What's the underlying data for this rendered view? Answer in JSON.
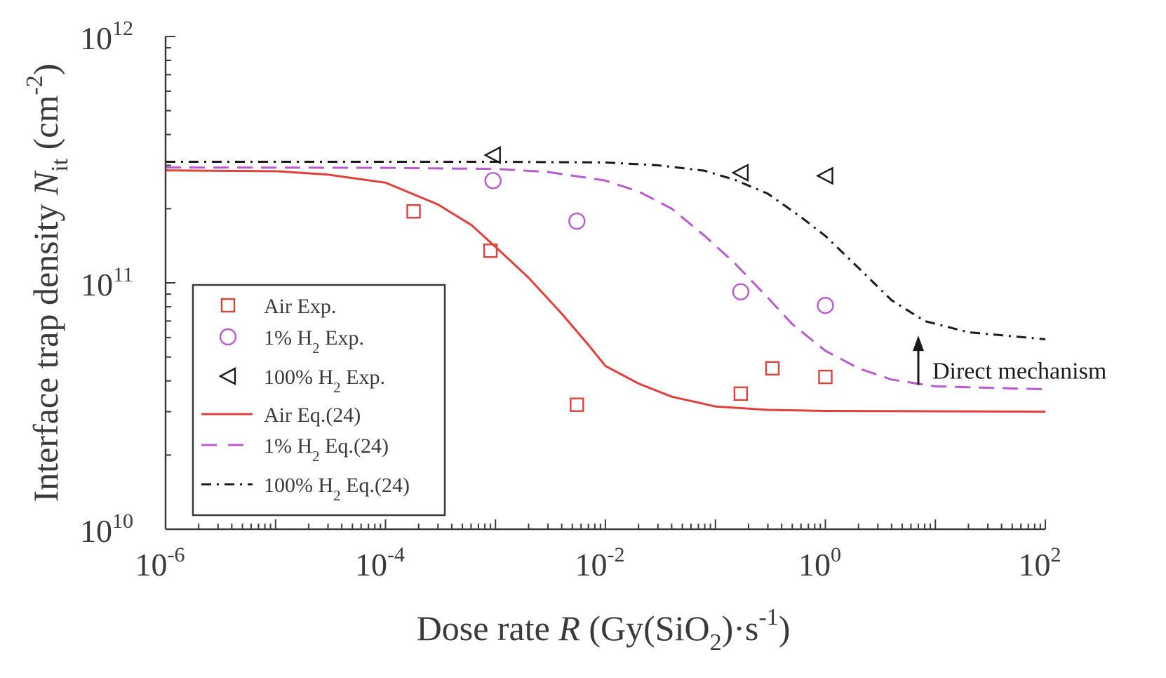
{
  "chart_data": {
    "type": "line",
    "x_scale": "log",
    "y_scale": "log",
    "xlim": [
      1e-06,
      100
    ],
    "ylim": [
      10000000000.0,
      1000000000000.0
    ],
    "x_ticks": [
      {
        "value": 1e-06,
        "base": "10",
        "exp": "-6"
      },
      {
        "value": 0.0001,
        "base": "10",
        "exp": "-4"
      },
      {
        "value": 0.01,
        "base": "10",
        "exp": "-2"
      },
      {
        "value": 1,
        "base": "10",
        "exp": "0"
      },
      {
        "value": 100,
        "base": "10",
        "exp": "2"
      }
    ],
    "y_ticks": [
      {
        "value": 10000000000.0,
        "base": "10",
        "exp": "10"
      },
      {
        "value": 100000000000.0,
        "base": "10",
        "exp": "11"
      },
      {
        "value": 1000000000000.0,
        "base": "10",
        "exp": "12"
      }
    ],
    "xlabel": {
      "pre": "Dose rate ",
      "var": "R",
      "mid": "  (Gy(SiO",
      "sub": "2",
      "post": ")·s",
      "sup": "-1",
      "end": ")"
    },
    "ylabel": {
      "pre": "Interface trap density ",
      "var": "N",
      "sub": "it",
      "mid": "  (cm",
      "sup": "-2",
      "end": ")"
    },
    "grid": false,
    "legend_position": "lower-left",
    "scatter_series": [
      {
        "name": "Air Exp.",
        "legend_pre": "Air Exp.",
        "marker": "square",
        "color": "#e0403a",
        "points": [
          [
            0.00018,
            195000000000.0
          ],
          [
            0.0009,
            135000000000.0
          ],
          [
            0.0055,
            32000000000.0
          ],
          [
            0.17,
            35500000000.0
          ],
          [
            0.33,
            45000000000.0
          ],
          [
            1.0,
            41500000000.0
          ]
        ]
      },
      {
        "name": "1% H2 Exp.",
        "legend_pre": "1% H",
        "legend_sub": "2",
        "legend_post": " Exp.",
        "marker": "circle",
        "color": "#b85bcc",
        "points": [
          [
            0.00095,
            260000000000.0
          ],
          [
            0.0055,
            178000000000.0
          ],
          [
            0.17,
            92000000000.0
          ],
          [
            1.0,
            81000000000.0
          ]
        ]
      },
      {
        "name": "100% H2 Exp.",
        "legend_pre": "100% H",
        "legend_sub": "2",
        "legend_post": " Exp.",
        "marker": "triangle-left",
        "color": "#1a1a1a",
        "points": [
          [
            0.00095,
            330000000000.0
          ],
          [
            0.17,
            280000000000.0
          ],
          [
            1.0,
            272000000000.0
          ]
        ]
      }
    ],
    "line_series": [
      {
        "name": "Air Eq.(24)",
        "legend_pre": "Air Eq.(24)",
        "style": "solid",
        "color": "#e0403a",
        "points": [
          [
            1e-06,
            286000000000.0
          ],
          [
            1e-05,
            284000000000.0
          ],
          [
            3e-05,
            275000000000.0
          ],
          [
            0.0001,
            255000000000.0
          ],
          [
            0.0003,
            208000000000.0
          ],
          [
            0.0006,
            172000000000.0
          ],
          [
            0.001,
            140000000000.0
          ],
          [
            0.002,
            105000000000.0
          ],
          [
            0.004,
            75000000000.0
          ],
          [
            0.007,
            56000000000.0
          ],
          [
            0.01,
            46000000000.0
          ],
          [
            0.02,
            39000000000.0
          ],
          [
            0.04,
            34500000000.0
          ],
          [
            0.1,
            31500000000.0
          ],
          [
            0.3,
            30500000000.0
          ],
          [
            1,
            30200000000.0
          ],
          [
            100,
            30000000000.0
          ]
        ]
      },
      {
        "name": "1% H2 Eq.(24)",
        "legend_pre": "1% H",
        "legend_sub": "2",
        "legend_post": " Eq.(24)",
        "style": "dashed",
        "color": "#b85bcc",
        "points": [
          [
            1e-06,
            294000000000.0
          ],
          [
            0.0001,
            293000000000.0
          ],
          [
            0.001,
            290000000000.0
          ],
          [
            0.003,
            282000000000.0
          ],
          [
            0.01,
            260000000000.0
          ],
          [
            0.02,
            235000000000.0
          ],
          [
            0.04,
            200000000000.0
          ],
          [
            0.08,
            155000000000.0
          ],
          [
            0.15,
            120000000000.0
          ],
          [
            0.3,
            87000000000.0
          ],
          [
            0.5,
            68000000000.0
          ],
          [
            1,
            53000000000.0
          ],
          [
            2,
            45000000000.0
          ],
          [
            4,
            40500000000.0
          ],
          [
            10,
            38000000000.0
          ],
          [
            100,
            37000000000.0
          ]
        ]
      },
      {
        "name": "100% H2 Eq.(24)",
        "legend_pre": "100% H",
        "legend_sub": "2",
        "legend_post": " Eq.(24)",
        "style": "dashdot",
        "color": "#1a1a1a",
        "points": [
          [
            1e-06,
            310000000000.0
          ],
          [
            0.001,
            310000000000.0
          ],
          [
            0.01,
            308000000000.0
          ],
          [
            0.03,
            300000000000.0
          ],
          [
            0.08,
            285000000000.0
          ],
          [
            0.15,
            262000000000.0
          ],
          [
            0.3,
            230000000000.0
          ],
          [
            0.6,
            185000000000.0
          ],
          [
            1,
            155000000000.0
          ],
          [
            2,
            115000000000.0
          ],
          [
            4,
            85000000000.0
          ],
          [
            8,
            70000000000.0
          ],
          [
            20,
            63000000000.0
          ],
          [
            100,
            59000000000.0
          ]
        ]
      }
    ],
    "annotation": {
      "text": "Direct mechanism",
      "arrow_x": 7,
      "arrow_from": 38500000000.0,
      "arrow_to": 59500000000.0
    }
  }
}
